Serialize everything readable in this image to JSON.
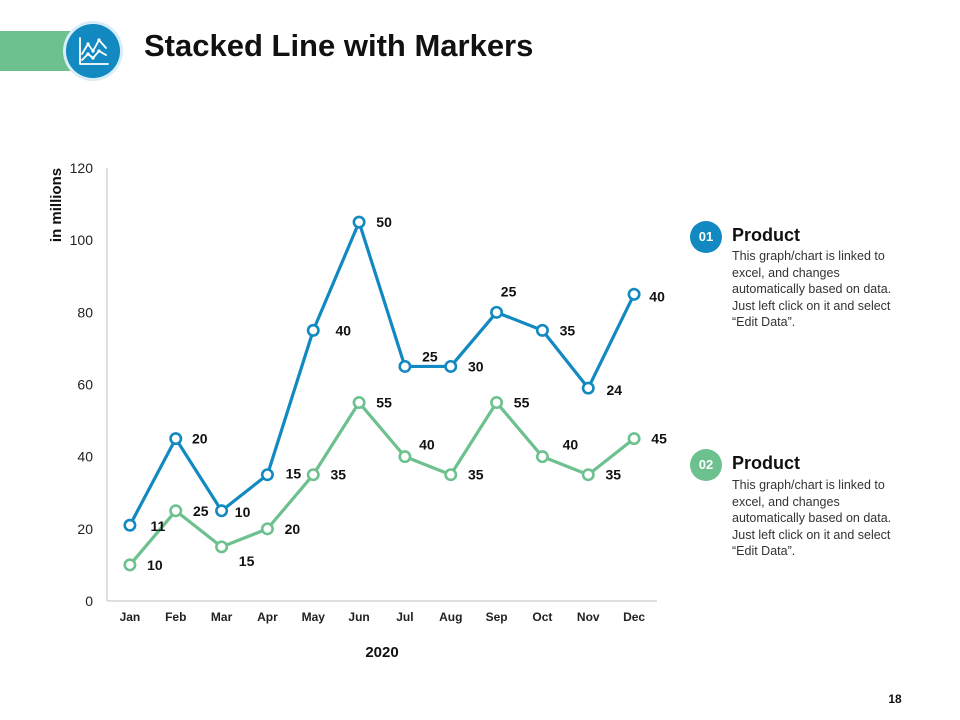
{
  "slide": {
    "title": "Stacked Line with Markers",
    "icon": "line-chart-icon",
    "page_number": "18"
  },
  "colors": {
    "blue": "#1289c0",
    "green": "#6cc18e",
    "axis": "#bfbfbf",
    "text": "#111111"
  },
  "legend": [
    {
      "badge": "01",
      "title": "Product",
      "color": "#1289c0",
      "description": "This graph/chart is linked to excel, and changes automatically based on data. Just left click on it and select “Edit Data”."
    },
    {
      "badge": "02",
      "title": "Product",
      "color": "#6cc18e",
      "description": "This graph/chart is linked to excel, and changes automatically based on data. Just left click on it and select “Edit Data”."
    }
  ],
  "chart_data": {
    "type": "line",
    "stacked": true,
    "categories": [
      "Jan",
      "Feb",
      "Mar",
      "Apr",
      "May",
      "Jun",
      "Jul",
      "Aug",
      "Sep",
      "Oct",
      "Nov",
      "Dec"
    ],
    "series": [
      {
        "name": "Product 02",
        "color": "#6cc18e",
        "values": [
          10,
          25,
          15,
          20,
          35,
          55,
          40,
          35,
          55,
          40,
          35,
          45
        ]
      },
      {
        "name": "Product 01",
        "color": "#1289c0",
        "values": [
          11,
          20,
          10,
          15,
          40,
          50,
          25,
          30,
          25,
          35,
          24,
          40
        ]
      }
    ],
    "xlabel": "2020",
    "ylabel": "in millions",
    "ylim": [
      0,
      120
    ],
    "yticks": [
      0,
      20,
      40,
      60,
      80,
      100,
      120
    ],
    "marker": "circle",
    "grid": false
  }
}
